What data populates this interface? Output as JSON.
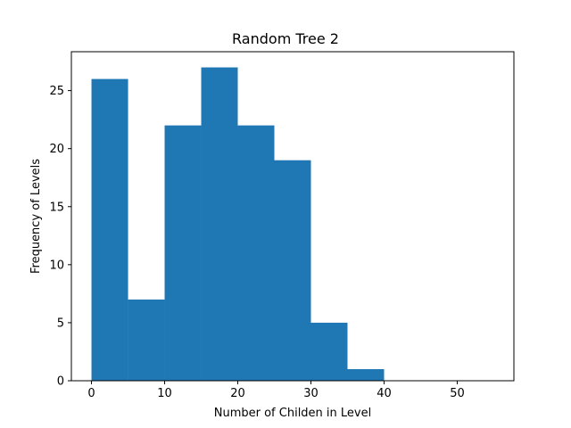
{
  "chart_data": {
    "type": "bar",
    "title": "Random Tree 2",
    "xlabel": "Number of Childen in Level",
    "ylabel": "Frequency of Levels",
    "bins": [
      {
        "start": 0,
        "end": 5,
        "value": 26
      },
      {
        "start": 5,
        "end": 10,
        "value": 7
      },
      {
        "start": 10,
        "end": 15,
        "value": 22
      },
      {
        "start": 15,
        "end": 20,
        "value": 27
      },
      {
        "start": 20,
        "end": 25,
        "value": 22
      },
      {
        "start": 25,
        "end": 30,
        "value": 19
      },
      {
        "start": 30,
        "end": 35,
        "value": 5
      },
      {
        "start": 35,
        "end": 40,
        "value": 1
      },
      {
        "start": 40,
        "end": 45,
        "value": 0
      },
      {
        "start": 45,
        "end": 50,
        "value": 0
      },
      {
        "start": 50,
        "end": 55,
        "value": 0
      }
    ],
    "xlim": [
      -2.75,
      57.75
    ],
    "ylim": [
      0,
      28.35
    ],
    "xticks": [
      0,
      10,
      20,
      30,
      40,
      50
    ],
    "yticks": [
      0,
      5,
      10,
      15,
      20,
      25
    ],
    "bar_color": "#1f77b4",
    "grid": false,
    "legend": "none"
  }
}
